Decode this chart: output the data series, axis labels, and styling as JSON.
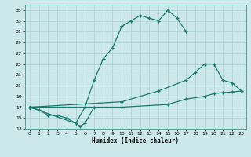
{
  "xlabel": "Humidex (Indice chaleur)",
  "bg_color": "#cce8ea",
  "grid_color": "#aad0d4",
  "line_color": "#1a7a6e",
  "xlim": [
    -0.5,
    23.5
  ],
  "ylim": [
    13,
    36
  ],
  "yticks": [
    13,
    15,
    17,
    19,
    21,
    23,
    25,
    27,
    29,
    31,
    33,
    35
  ],
  "xticks": [
    0,
    1,
    2,
    3,
    4,
    5,
    6,
    7,
    8,
    9,
    10,
    11,
    12,
    13,
    14,
    15,
    16,
    17,
    18,
    19,
    20,
    21,
    22,
    23
  ],
  "line_upper_x": [
    0,
    5,
    6,
    7,
    8,
    9,
    10,
    11,
    12,
    13,
    14,
    15,
    16,
    17
  ],
  "line_upper_y": [
    17,
    14,
    17,
    22,
    26,
    28,
    32,
    33,
    34,
    33.5,
    33,
    35,
    33.5,
    31
  ],
  "line_mid_x": [
    0,
    10,
    14,
    17,
    18,
    19,
    20,
    21,
    22,
    23
  ],
  "line_mid_y": [
    17,
    18,
    20,
    22,
    23.5,
    25,
    25,
    22,
    21.5,
    20
  ],
  "line_low_x": [
    0,
    10,
    15,
    17,
    19,
    20,
    21,
    22,
    23
  ],
  "line_low_y": [
    17,
    17,
    17.5,
    18.5,
    19,
    19.5,
    19.7,
    19.8,
    20
  ],
  "line_jag_x": [
    0,
    1,
    2,
    3,
    4,
    5,
    5.5,
    6,
    7
  ],
  "line_jag_y": [
    17,
    16.5,
    15.5,
    15.5,
    15,
    14,
    13.5,
    14,
    17
  ]
}
